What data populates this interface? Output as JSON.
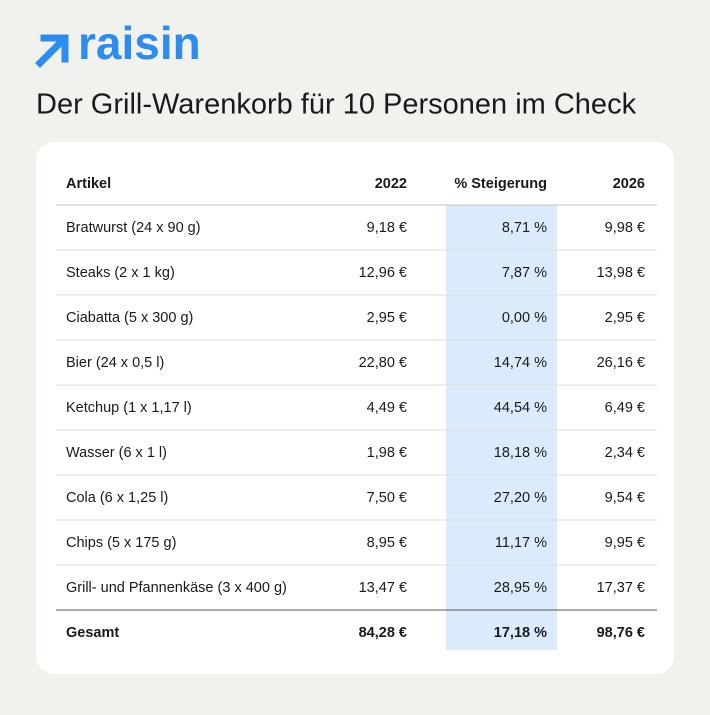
{
  "header": {
    "brand": "raisin",
    "title": "Der Grill-Warenkorb für 10 Personen im Check"
  },
  "table": {
    "columns": [
      "Artikel",
      "2022",
      "% Steigerung",
      "2026"
    ],
    "rows": [
      [
        "Bratwurst (24 x 90 g)",
        "9,18 €",
        "8,71 %",
        "9,98 €"
      ],
      [
        "Steaks (2 x 1 kg)",
        "12,96 €",
        "7,87 %",
        "13,98 €"
      ],
      [
        "Ciabatta (5 x 300 g)",
        "2,95 €",
        "0,00 %",
        "2,95 €"
      ],
      [
        "Bier (24 x 0,5 l)",
        "22,80 €",
        "14,74 %",
        "26,16 €"
      ],
      [
        "Ketchup (1 x 1,17 l)",
        "4,49 €",
        "44,54 %",
        "6,49 €"
      ],
      [
        "Wasser (6 x 1 l)",
        "1,98 €",
        "18,18 %",
        "2,34 €"
      ],
      [
        "Cola (6 x 1,25 l)",
        "7,50 €",
        "27,20 %",
        "9,54 €"
      ],
      [
        "Chips (5 x 175 g)",
        "8,95 €",
        "11,17 %",
        "9,95 €"
      ],
      [
        "Grill- und Pfannenkäse (3 x 400 g)",
        "13,47 €",
        "28,95 %",
        "17,37 €"
      ]
    ],
    "total": [
      "Gesamt",
      "84,28 €",
      "17,18 %",
      "98,76 €"
    ]
  }
}
